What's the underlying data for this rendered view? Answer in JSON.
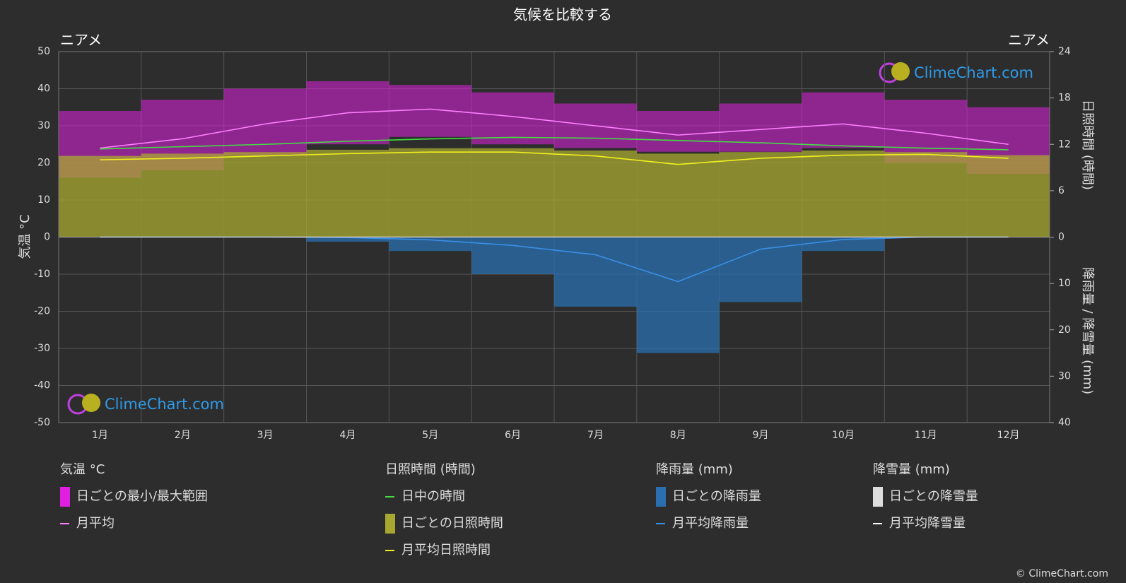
{
  "title": "気候を比較する",
  "location": "ニアメ",
  "watermark": "ClimeChart.com",
  "copyright": "© ClimeChart.com",
  "chart_data": {
    "type": "climate",
    "categories": [
      "1月",
      "2月",
      "3月",
      "4月",
      "5月",
      "6月",
      "7月",
      "8月",
      "9月",
      "10月",
      "11月",
      "12月"
    ],
    "ylabel": "気温 °C",
    "y2label": "日照時間 (時間)",
    "y3label": "降雨量 / 降雪量 (mm)",
    "ylim": [
      -50,
      50
    ],
    "yticks": [
      -50,
      -40,
      -30,
      -20,
      -10,
      0,
      10,
      20,
      30,
      40,
      50
    ],
    "y2lim": [
      0,
      24
    ],
    "y2ticks": [
      0,
      6,
      12,
      18,
      24
    ],
    "y3lim": [
      0,
      40
    ],
    "y3ticks": [
      0,
      10,
      20,
      30,
      40
    ],
    "grid": true,
    "groups": [
      {
        "title": "気温 °C",
        "series": [
          {
            "name": "日ごとの最小/最大範囲",
            "kind": "range",
            "axis": "y",
            "color": "#e020e0",
            "low": [
              16,
              18,
              22,
              25,
              27,
              25,
              24,
              23,
              23,
              24,
              20,
              17
            ],
            "high": [
              34,
              37,
              40,
              42,
              41,
              39,
              36,
              34,
              36,
              39,
              37,
              35
            ]
          },
          {
            "name": "月平均",
            "kind": "line",
            "axis": "y",
            "color": "#ff80ff",
            "values": [
              24,
              26.5,
              30.5,
              33.5,
              34.5,
              32.5,
              30,
              27.5,
              29,
              30.5,
              28,
              25
            ]
          }
        ]
      },
      {
        "title": "日照時間 (時間)",
        "series": [
          {
            "name": "日中の時間",
            "kind": "line",
            "axis": "y2",
            "color": "#44dd44",
            "values": [
              11.4,
              11.7,
              12.0,
              12.4,
              12.7,
              12.9,
              12.8,
              12.5,
              12.2,
              11.8,
              11.5,
              11.3
            ]
          },
          {
            "name": "日ごとの日照時間",
            "kind": "bar",
            "axis": "y2",
            "color": "#a8a830",
            "values": [
              10.5,
              10.8,
              11.0,
              11.3,
              11.5,
              11.5,
              11.2,
              10.8,
              11.0,
              11.2,
              11.0,
              10.6
            ]
          },
          {
            "name": "月平均日照時間",
            "kind": "line",
            "axis": "y2",
            "color": "#f0f020",
            "values": [
              10.0,
              10.2,
              10.5,
              10.8,
              11.0,
              11.0,
              10.5,
              9.4,
              10.2,
              10.6,
              10.7,
              10.2
            ]
          }
        ]
      },
      {
        "title": "降雨量 (mm)",
        "series": [
          {
            "name": "日ごとの降雨量",
            "kind": "bar",
            "axis": "y3",
            "color": "#2a6fb0",
            "values": [
              0,
              0,
              0,
              1,
              3,
              8,
              15,
              25,
              14,
              3,
              0,
              0
            ]
          },
          {
            "name": "月平均降雨量",
            "kind": "line",
            "axis": "y3",
            "color": "#3a8ee6",
            "values": [
              0,
              0,
              0,
              0.1,
              0.6,
              1.8,
              3.8,
              9.6,
              2.6,
              0.5,
              0,
              0
            ]
          }
        ]
      },
      {
        "title": "降雪量 (mm)",
        "series": [
          {
            "name": "日ごとの降雪量",
            "kind": "bar",
            "axis": "y3",
            "color": "#dddddd",
            "values": [
              0,
              0,
              0,
              0,
              0,
              0,
              0,
              0,
              0,
              0,
              0,
              0
            ]
          },
          {
            "name": "月平均降雪量",
            "kind": "line",
            "axis": "y3",
            "color": "#ffffff",
            "values": [
              0,
              0,
              0,
              0,
              0,
              0,
              0,
              0,
              0,
              0,
              0,
              0
            ]
          }
        ]
      }
    ]
  }
}
